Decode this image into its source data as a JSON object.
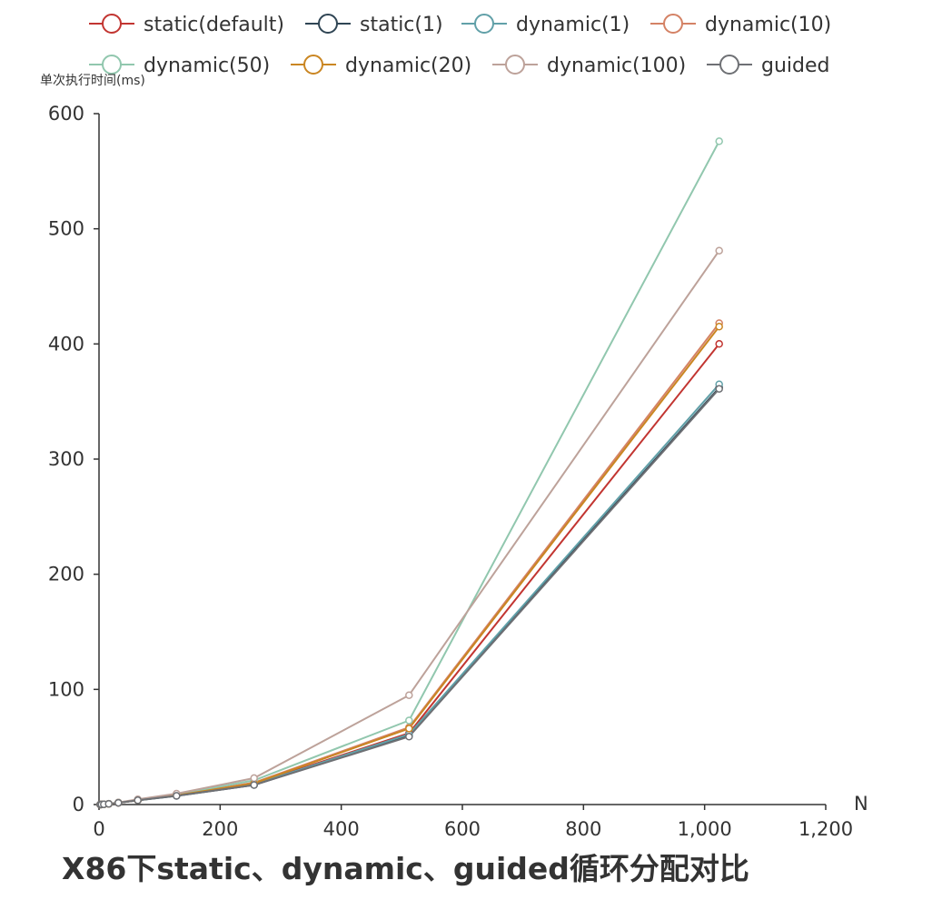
{
  "chart_data": {
    "type": "line",
    "title": "X86下static、dynamic、guided循环分配对比",
    "xlabel": "N",
    "ylabel": "单次执行时间(ms)",
    "xlim": [
      0,
      1200
    ],
    "ylim": [
      0,
      600
    ],
    "x_ticks": [
      "0",
      "200",
      "400",
      "600",
      "800",
      "1,000",
      "1,200"
    ],
    "y_ticks": [
      "0",
      "100",
      "200",
      "300",
      "400",
      "500",
      "600"
    ],
    "legend_position": "top",
    "grid": false,
    "x": [
      2,
      4,
      8,
      16,
      32,
      64,
      128,
      256,
      512,
      1024
    ],
    "series": [
      {
        "name": "static(default)",
        "color": "#c23531",
        "values": [
          0.01,
          0.05,
          0.2,
          0.6,
          1.5,
          3.8,
          8.0,
          18.0,
          62.0,
          400.0
        ]
      },
      {
        "name": "static(1)",
        "color": "#2f4554",
        "values": [
          0.01,
          0.05,
          0.2,
          0.6,
          1.5,
          3.6,
          7.5,
          17.0,
          60.0,
          362.0
        ]
      },
      {
        "name": "dynamic(1)",
        "color": "#61a0a8",
        "values": [
          0.01,
          0.05,
          0.2,
          0.6,
          1.6,
          3.7,
          7.8,
          17.5,
          61.0,
          365.0
        ]
      },
      {
        "name": "dynamic(10)",
        "color": "#d48265",
        "values": [
          0.01,
          0.05,
          0.2,
          0.6,
          1.6,
          3.9,
          8.2,
          19.0,
          67.0,
          418.0
        ]
      },
      {
        "name": "dynamic(50)",
        "color": "#91c7ae",
        "values": [
          0.01,
          0.05,
          0.2,
          0.7,
          1.7,
          4.2,
          8.8,
          21.0,
          73.0,
          576.0
        ]
      },
      {
        "name": "dynamic(20)",
        "color": "#ca8622",
        "values": [
          0.01,
          0.05,
          0.2,
          0.6,
          1.6,
          3.9,
          8.0,
          18.5,
          66.0,
          415.0
        ]
      },
      {
        "name": "dynamic(100)",
        "color": "#bda29a",
        "values": [
          0.01,
          0.05,
          0.2,
          0.7,
          1.8,
          4.5,
          9.5,
          23.0,
          95.0,
          481.0
        ]
      },
      {
        "name": "guided",
        "color": "#6e7074",
        "values": [
          0.01,
          0.05,
          0.2,
          0.6,
          1.5,
          3.7,
          7.6,
          17.0,
          59.0,
          361.0
        ]
      }
    ]
  }
}
